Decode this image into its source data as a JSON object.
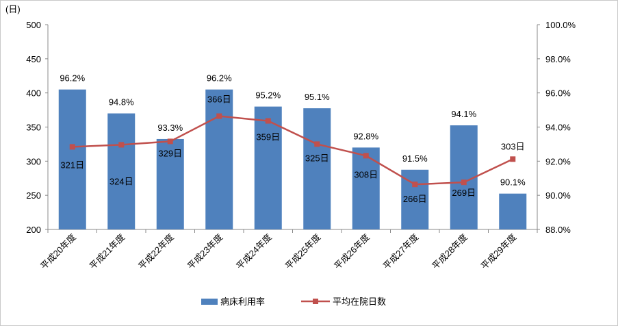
{
  "chart_data": {
    "type": "bar",
    "y_unit_label": "(日)",
    "categories": [
      "平成20年度",
      "平成21年度",
      "平成22年度",
      "平成23年度",
      "平成24年度",
      "平成25年度",
      "平成26年度",
      "平成27年度",
      "平成28年度",
      "平成29年度"
    ],
    "series": [
      {
        "name": "病床利用率",
        "type": "bar",
        "axis": "right",
        "color": "#4f81bd",
        "values": [
          96.2,
          94.8,
          93.3,
          96.2,
          95.2,
          95.1,
          92.8,
          91.5,
          94.1,
          90.1
        ],
        "labels": [
          "96.2%",
          "94.8%",
          "93.3%",
          "96.2%",
          "95.2%",
          "95.1%",
          "92.8%",
          "91.5%",
          "94.1%",
          "90.1%"
        ]
      },
      {
        "name": "平均在院日数",
        "type": "line",
        "axis": "left",
        "color": "#c0504d",
        "values": [
          321,
          324,
          329,
          366,
          359,
          325,
          308,
          266,
          269,
          303
        ],
        "labels": [
          "321日",
          "324日",
          "329日",
          "366日",
          "359日",
          "325日",
          "308日",
          "266日",
          "269日",
          "303日"
        ]
      }
    ],
    "y_left": {
      "min": 200,
      "max": 500,
      "ticks": [
        "200",
        "250",
        "300",
        "350",
        "400",
        "450",
        "500"
      ]
    },
    "y_right": {
      "min": 88.0,
      "max": 100.0,
      "ticks": [
        "88.0%",
        "90.0%",
        "92.0%",
        "94.0%",
        "96.0%",
        "98.0%",
        "100.0%"
      ]
    },
    "grid": false,
    "legend": "bottom"
  }
}
